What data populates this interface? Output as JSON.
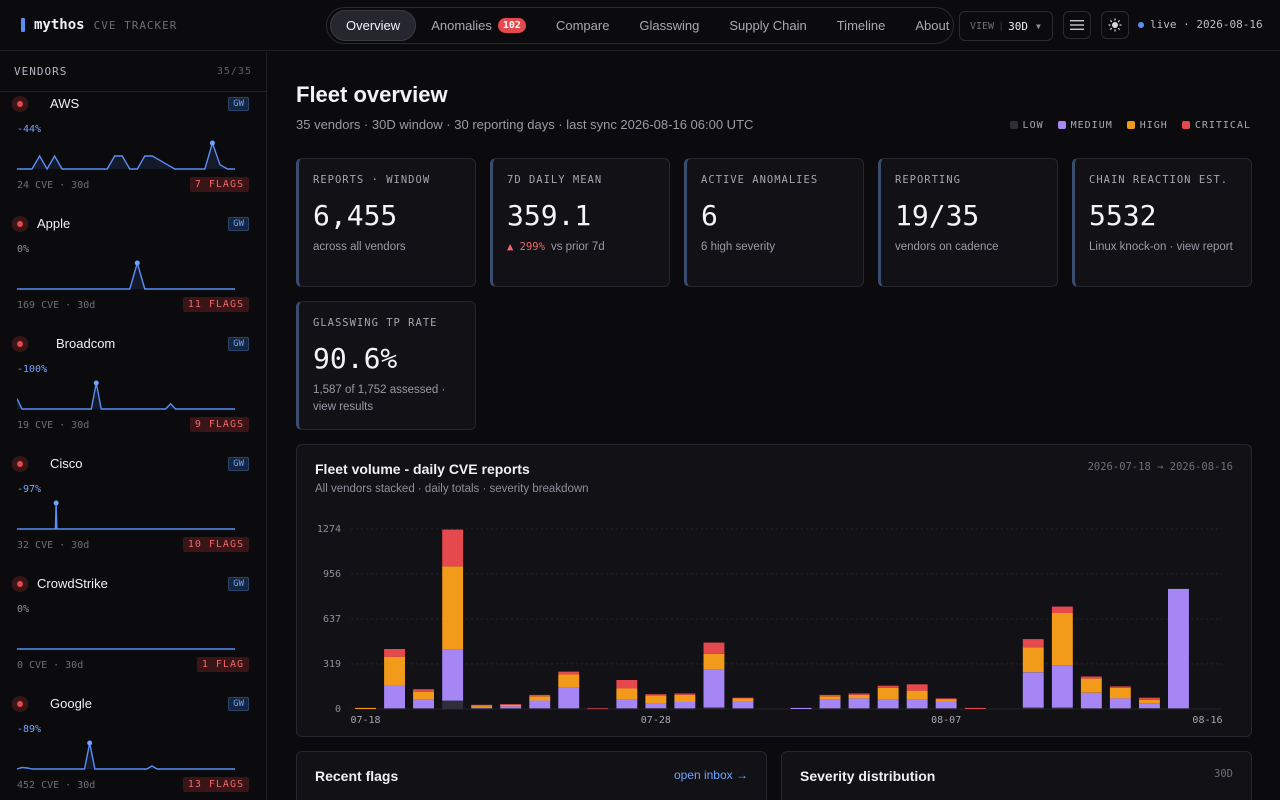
{
  "app": {
    "name": "mythos",
    "subtitle": "CVE TRACKER"
  },
  "nav": {
    "tabs": [
      {
        "label": "Overview",
        "active": true
      },
      {
        "label": "Anomalies",
        "badge": "102"
      },
      {
        "label": "Compare"
      },
      {
        "label": "Glasswing"
      },
      {
        "label": "Supply Chain"
      },
      {
        "label": "Timeline"
      },
      {
        "label": "About"
      }
    ],
    "view_label": "VIEW",
    "view_value": "30D",
    "menu_icon": "hamburger-icon",
    "theme_icon": "sun-icon",
    "live_text": "live · 2026-08-16"
  },
  "sidebar": {
    "title": "VENDORS",
    "count": "35/35",
    "vendors": [
      {
        "name": "AWS",
        "change": "-44%",
        "cves": "24 CVE · 30d",
        "flags": "7 FLAGS",
        "gw": "GW",
        "spark": [
          0,
          0,
          0,
          3,
          0,
          3,
          0,
          0,
          0,
          0,
          0,
          0,
          0,
          3,
          3,
          0,
          0,
          3,
          3,
          2,
          1,
          0,
          0,
          0,
          0,
          0,
          6,
          1,
          0,
          0
        ]
      },
      {
        "name": "Apple",
        "change": "0%",
        "cves": "169 CVE · 30d",
        "flags": "11 FLAGS",
        "gw": "GW",
        "spark": [
          0,
          0,
          0,
          0,
          0,
          0,
          0,
          0,
          0,
          0,
          0,
          0,
          0,
          0,
          0,
          0,
          1,
          0,
          0,
          0,
          0,
          0,
          0,
          0,
          0,
          0,
          0,
          0,
          0,
          0
        ]
      },
      {
        "name": "Broadcom",
        "change": "-100%",
        "cves": "19 CVE · 30d",
        "flags": "9 FLAGS",
        "gw": "GW",
        "spark": [
          2,
          0,
          0,
          0,
          0,
          0,
          0,
          0,
          0,
          0,
          0,
          0,
          0,
          0,
          0,
          0,
          5,
          0,
          0,
          0,
          0,
          0,
          0,
          0,
          0,
          0,
          0,
          0,
          0,
          0,
          0,
          1,
          0,
          0,
          0,
          0,
          0,
          0,
          0,
          0,
          0,
          0,
          0,
          0,
          0
        ]
      },
      {
        "name": "Cisco",
        "change": "-97%",
        "cves": "32 CVE · 30d",
        "flags": "10 FLAGS",
        "gw": "GW",
        "spark": [
          0,
          0,
          0,
          0,
          0,
          0,
          0,
          0,
          0,
          0,
          0,
          0,
          0,
          0,
          0,
          0,
          0,
          0,
          0,
          0,
          0,
          0,
          0,
          0,
          0,
          0,
          0,
          0,
          0,
          0,
          0,
          0,
          0,
          0,
          0,
          0,
          0,
          0,
          0,
          0,
          0,
          0,
          0,
          0,
          0,
          0,
          0,
          0,
          0,
          0,
          0,
          1,
          0,
          0,
          0,
          0,
          0,
          0,
          0,
          0,
          0,
          0,
          0,
          0,
          0,
          0,
          0,
          0,
          0,
          0,
          0,
          0,
          0,
          0,
          0,
          0,
          0,
          0,
          0,
          0,
          0,
          0,
          0,
          0,
          0,
          0,
          0,
          0,
          0,
          0,
          0,
          0,
          0,
          0,
          0,
          0,
          0,
          0,
          0,
          0,
          0,
          0,
          0,
          0,
          0,
          0,
          0,
          0,
          0,
          0,
          0,
          0,
          0,
          0,
          0,
          0,
          0,
          0,
          0,
          0,
          0,
          0,
          0,
          0,
          0,
          0,
          0,
          0,
          0,
          0,
          0,
          0,
          0,
          0,
          0,
          0,
          0,
          0,
          0,
          0,
          0,
          0,
          0,
          0,
          0,
          0,
          0,
          0,
          0,
          0,
          0,
          0,
          0,
          0,
          0,
          0,
          0,
          0,
          0,
          0,
          0,
          0,
          0,
          0,
          0,
          0,
          0,
          0,
          0,
          0,
          0,
          0,
          0,
          0,
          0,
          0,
          0,
          0,
          0,
          0,
          0,
          0,
          0,
          0,
          0,
          0,
          0,
          0,
          0,
          0,
          0,
          0,
          0,
          0,
          0,
          0,
          0,
          0,
          0,
          0,
          0,
          0,
          0,
          0,
          0,
          0,
          0,
          0,
          0,
          0,
          0,
          0,
          0,
          0,
          0,
          0,
          0,
          0,
          0,
          0,
          0,
          0,
          0,
          0,
          0,
          0,
          0,
          0,
          0,
          0,
          0,
          0,
          0,
          0,
          0,
          0,
          0,
          0,
          0,
          0,
          0,
          0,
          0,
          0,
          0,
          0,
          0,
          0,
          0,
          0,
          0,
          0,
          0,
          0,
          0,
          0,
          0,
          0,
          0,
          0,
          0,
          0,
          0,
          0,
          0,
          0,
          0,
          0,
          0,
          0,
          0,
          0,
          0,
          0,
          0,
          0,
          0,
          0,
          0,
          0,
          0,
          0,
          0,
          0,
          0
        ]
      },
      {
        "name": "CrowdStrike",
        "change": "0%",
        "cves": "0 CVE · 30d",
        "flags": "1 FLAG",
        "gw": "GW",
        "spark": [
          0,
          0,
          0,
          0,
          0,
          0,
          0,
          0,
          0,
          0,
          0,
          0,
          0,
          0,
          0,
          0,
          0,
          0,
          0,
          0,
          0,
          0,
          0,
          0,
          0,
          0,
          0,
          0,
          0,
          0
        ]
      },
      {
        "name": "Google",
        "change": "-89%",
        "cves": "452 CVE · 30d",
        "flags": "13 FLAGS",
        "gw": "GW",
        "spark": [
          0,
          0.3,
          0.2,
          0,
          0,
          0,
          0,
          0,
          0,
          0,
          0,
          0,
          0,
          0,
          5,
          0,
          0,
          0,
          0,
          0,
          0,
          0,
          0,
          0,
          0,
          0,
          0.6,
          0,
          0,
          0,
          0,
          0,
          0,
          0,
          0,
          0,
          0,
          0,
          0,
          0,
          0,
          0,
          0
        ]
      }
    ]
  },
  "main": {
    "title": "Fleet overview",
    "subtitle": "35 vendors · 30D window · 30 reporting days · last sync 2026-08-16 06:00 UTC",
    "legend": [
      {
        "label": "LOW",
        "color": "#2e2f38"
      },
      {
        "label": "MEDIUM",
        "color": "#a685f5"
      },
      {
        "label": "HIGH",
        "color": "#f29b1b"
      },
      {
        "label": "CRITICAL",
        "color": "#e5484d"
      }
    ],
    "cards": [
      {
        "key": "REPORTS · WINDOW",
        "value": "6,455",
        "desc": "across all vendors"
      },
      {
        "key": "7D DAILY MEAN",
        "value": "359.1",
        "delta": "▲ 299%",
        "desc": "vs prior 7d"
      },
      {
        "key": "ACTIVE ANOMALIES",
        "value": "6",
        "desc": "6 high severity"
      },
      {
        "key": "REPORTING",
        "value": "19/35",
        "desc": "vendors on cadence"
      },
      {
        "key": "CHAIN REACTION EST.",
        "value": "5532",
        "desc": "Linux knock-on · view report"
      },
      {
        "key": "GLASSWING TP RATE",
        "value": "90.6%",
        "desc": "1,587 of 1,752 assessed · view results"
      }
    ],
    "volume_panel": {
      "title": "Fleet volume - daily CVE reports",
      "subtitle": "All vendors stacked · daily totals · severity breakdown",
      "range": "2026-07-18 → 2026-08-16"
    },
    "flags_panel": {
      "title": "Recent flags",
      "link": "open inbox →"
    },
    "severity_panel": {
      "title": "Severity distribution",
      "range": "30D"
    }
  },
  "chart_data": {
    "type": "bar",
    "stacked": true,
    "title": "Fleet volume - daily CVE reports",
    "subtitle": "All vendors stacked · daily totals · severity breakdown",
    "ylim": [
      0,
      1274
    ],
    "yticks": [
      0,
      319,
      637,
      956,
      1274
    ],
    "xtick_labels": [
      "07-18",
      "07-28",
      "08-07",
      "08-16"
    ],
    "categories": [
      "07-18",
      "07-19",
      "07-20",
      "07-21",
      "07-22",
      "07-23",
      "07-24",
      "07-25",
      "07-26",
      "07-27",
      "07-28",
      "07-29",
      "07-30",
      "07-31",
      "08-01",
      "08-02",
      "08-03",
      "08-04",
      "08-05",
      "08-06",
      "08-07",
      "08-08",
      "08-09",
      "08-10",
      "08-11",
      "08-12",
      "08-13",
      "08-14",
      "08-15",
      "08-16"
    ],
    "series": [
      {
        "name": "LOW",
        "color": "#2e2f38",
        "values": [
          0,
          5,
          5,
          60,
          5,
          5,
          5,
          5,
          0,
          5,
          5,
          5,
          10,
          5,
          0,
          0,
          5,
          5,
          5,
          5,
          5,
          0,
          0,
          10,
          10,
          5,
          5,
          5,
          5,
          0
        ]
      },
      {
        "name": "MEDIUM",
        "color": "#a685f5",
        "values": [
          0,
          165,
          65,
          360,
          10,
          15,
          55,
          145,
          0,
          60,
          35,
          45,
          270,
          45,
          0,
          8,
          65,
          70,
          60,
          60,
          45,
          0,
          0,
          250,
          300,
          110,
          70,
          35,
          845,
          0
        ]
      },
      {
        "name": "HIGH",
        "color": "#f29b1b",
        "values": [
          8,
          200,
          50,
          590,
          10,
          10,
          30,
          95,
          0,
          80,
          55,
          50,
          110,
          25,
          0,
          0,
          20,
          25,
          85,
          65,
          20,
          0,
          0,
          175,
          370,
          100,
          75,
          25,
          0,
          0
        ]
      },
      {
        "name": "CRITICAL",
        "color": "#e5484d",
        "values": [
          0,
          55,
          20,
          260,
          5,
          5,
          10,
          20,
          5,
          60,
          10,
          10,
          80,
          5,
          0,
          0,
          10,
          10,
          15,
          45,
          5,
          8,
          0,
          60,
          45,
          15,
          10,
          15,
          0,
          0
        ]
      }
    ]
  }
}
